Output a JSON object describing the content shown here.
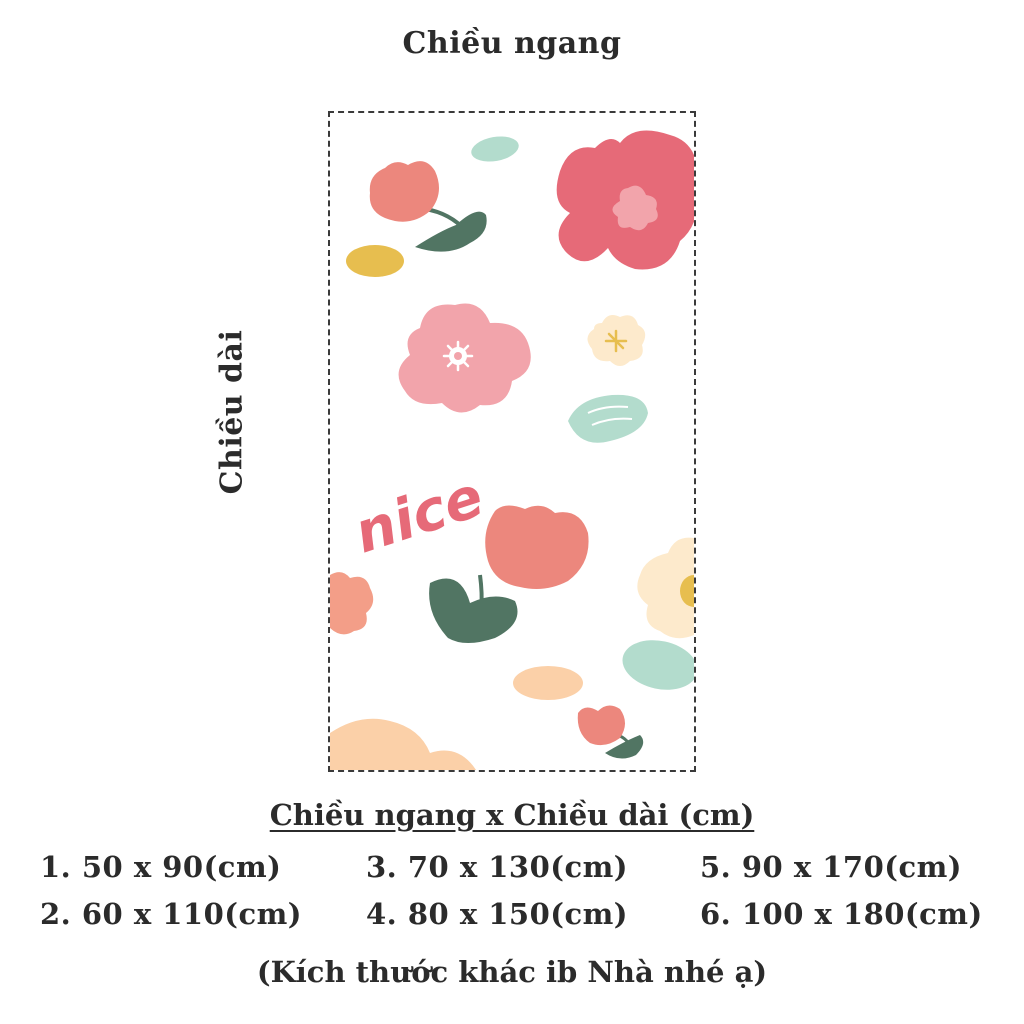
{
  "labels": {
    "width": "Chiều ngang",
    "length": "Chiều dài"
  },
  "sizes": {
    "title": "Chiều ngang x Chiều dài (cm)",
    "items": [
      "1. 50 x 90(cm)",
      "2. 60 x 110(cm)",
      "3. 70 x 130(cm)",
      "4. 80 x 150(cm)",
      "5. 90 x 170(cm)",
      "6. 100 x 180(cm)"
    ]
  },
  "note": "(Kích thước khác ib Nhà nhé ạ)",
  "pattern": {
    "word": "nice",
    "colors": {
      "red": "#e66a78",
      "pink": "#f2a4ab",
      "salmon": "#ec877d",
      "peach": "#fbd0a8",
      "cream": "#fdeacc",
      "mint": "#b3dccd",
      "leaf": "#517563",
      "mustard": "#e7be4f",
      "orange": "#f39e88"
    }
  }
}
